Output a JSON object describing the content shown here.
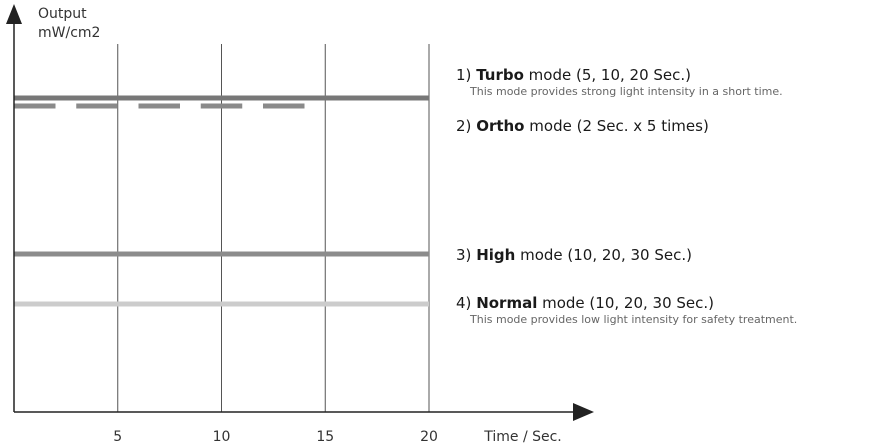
{
  "chart_data": {
    "type": "line",
    "ylabel": [
      "Output",
      "mW/cm2"
    ],
    "xlabel": "Time / Sec.",
    "xlim": [
      0,
      20
    ],
    "x_ticks": [
      5,
      10,
      15,
      20
    ],
    "grid": true,
    "series": [
      {
        "name": "Turbo",
        "number": "1)",
        "rest": "mode (5, 10, 20 Sec.)",
        "note": "This mode provides strong light intensity in a short time.",
        "level": "highest",
        "color": "#777777",
        "style": "solid",
        "x": [
          0,
          20
        ]
      },
      {
        "name": "Ortho",
        "number": "2)",
        "rest": "mode (2 Sec. x 5 times)",
        "note": "",
        "level": "high",
        "color": "#8a8a8a",
        "style": "dashed",
        "pulses": [
          [
            0,
            2
          ],
          [
            3,
            5
          ],
          [
            6,
            8
          ],
          [
            9,
            11
          ],
          [
            12,
            14
          ]
        ]
      },
      {
        "name": "High",
        "number": "3)",
        "rest": "mode (10, 20, 30 Sec.)",
        "note": "",
        "level": "medium",
        "color": "#8c8c8c",
        "style": "solid",
        "x": [
          0,
          20
        ]
      },
      {
        "name": "Normal",
        "number": "4)",
        "rest": "mode (10, 20, 30 Sec.)",
        "note": "This mode provides low light intensity for safety treatment.",
        "level": "low",
        "color": "#cccccc",
        "style": "solid",
        "x": [
          0,
          20
        ]
      }
    ]
  }
}
